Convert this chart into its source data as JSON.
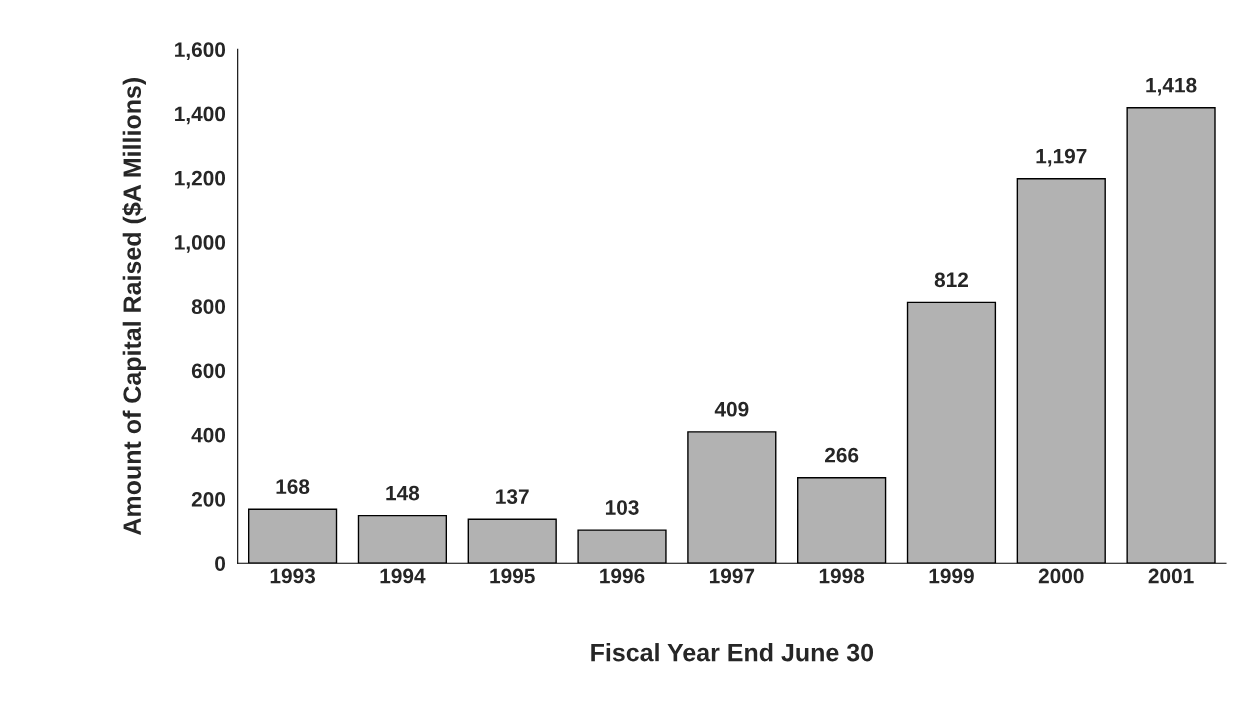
{
  "chart_data": {
    "type": "bar",
    "xlabel": "Fiscal Year End June 30",
    "ylabel": "Amount of Capital Raised ($A Millions)",
    "categories": [
      "1993",
      "1994",
      "1995",
      "1996",
      "1997",
      "1998",
      "1999",
      "2000",
      "2001"
    ],
    "values": [
      168,
      148,
      137,
      103,
      409,
      266,
      812,
      1197,
      1418
    ],
    "value_labels": [
      "168",
      "148",
      "137",
      "103",
      "409",
      "266",
      "812",
      "1,197",
      "1,418"
    ],
    "color": "#b2b2b2",
    "ylim": [
      0,
      1600
    ],
    "yticks": [
      0,
      {
        "value": 200,
        "label": "200"
      },
      {
        "value": 400,
        "label": "400"
      },
      {
        "value": 600,
        "label": "600"
      },
      {
        "value": 800,
        "label": "800"
      },
      {
        "value": 1000,
        "label": "1,000"
      },
      {
        "value": 1200,
        "label": "1,200"
      },
      {
        "value": 1400,
        "label": "1,400"
      },
      {
        "value": 1600,
        "label": "1,600"
      }
    ],
    "grid": false,
    "legend": false
  }
}
